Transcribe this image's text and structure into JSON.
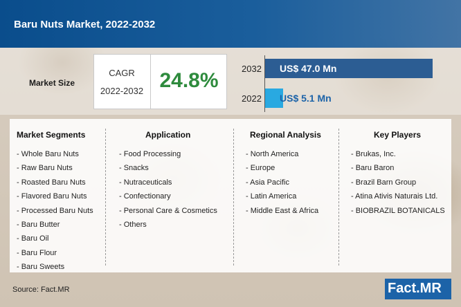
{
  "header": {
    "title": "Baru Nuts Market, 2022-2032"
  },
  "market_size": {
    "label": "Market Size",
    "cagr_label": "CAGR",
    "cagr_period": "2022-2032",
    "cagr_value": "24.8%"
  },
  "colors": {
    "brand_blue": "#0a4d8c",
    "bar_2032": "#2c5d93",
    "bar_2022": "#29a9e1",
    "cagr_green": "#2e8b3d"
  },
  "chart_data": {
    "type": "bar",
    "orientation": "horizontal",
    "categories": [
      "2032",
      "2022"
    ],
    "values": [
      47.0,
      5.1
    ],
    "labels": [
      "US$ 47.0 Mn",
      "US$ 5.1 Mn"
    ],
    "unit": "US$ Mn"
  },
  "segments": {
    "market_segments": {
      "title": "Market Segments",
      "items": [
        "- Whole Baru Nuts",
        "- Raw Baru Nuts",
        "- Roasted Baru Nuts",
        "- Flavored Baru Nuts",
        "- Processed Baru Nuts",
        "- Baru Butter",
        "- Baru Oil",
        "- Baru Flour",
        "- Baru Sweets"
      ]
    },
    "application": {
      "title": "Application",
      "items": [
        "- Food Processing",
        "- Snacks",
        "- Nutraceuticals",
        "- Confectionary",
        "- Personal Care & Cosmetics",
        "- Others"
      ]
    },
    "regional": {
      "title": "Regional Analysis",
      "items": [
        "- North America",
        "- Europe",
        "- Asia Pacific",
        "- Latin America",
        "- Middle East & Africa"
      ]
    },
    "key_players": {
      "title": "Key Players",
      "items": [
        "- Brukas, Inc.",
        "- Baru Baron",
        "- Brazil Barn Group",
        "- Atina Ativis Naturais Ltd.",
        "- BIOBRAZIL BOTANICALS"
      ]
    }
  },
  "footer": {
    "source": "Source: Fact.MR",
    "logo": "Fact.MR"
  }
}
